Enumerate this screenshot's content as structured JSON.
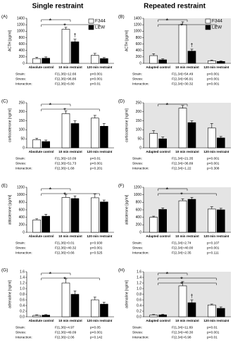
{
  "headings": [
    "Single restraint",
    "Repeated restraint"
  ],
  "chart_data": [
    {
      "type": "bar",
      "panel": "(A)",
      "ylabel": "ACTH [pg/ml]",
      "categories": [
        "Absolute control",
        "10 min restraint",
        "120 min restraint"
      ],
      "series": [
        {
          "name": "F344",
          "color": "#ffffff",
          "values": [
            150,
            1060,
            250
          ],
          "errors": [
            40,
            60,
            60
          ]
        },
        {
          "name": "LEW",
          "color": "#000000",
          "values": [
            160,
            670,
            150
          ],
          "errors": [
            40,
            80,
            30
          ]
        }
      ],
      "ylim": [
        0,
        1400
      ],
      "yticks": [
        0,
        200,
        400,
        600,
        800,
        1000,
        1200,
        1400
      ],
      "legend": true,
      "annotations": [
        "*",
        "*",
        "†"
      ],
      "stats": [
        [
          "Strain:",
          "F(1,36)=12.66",
          "p<0.001"
        ],
        [
          "Stress:",
          "F(2,36)=96.86",
          "p<0.001"
        ],
        [
          "Interaction:",
          "F(2,36)=6.80",
          "p<0.01"
        ]
      ]
    },
    {
      "type": "bar",
      "panel": "(B)",
      "ylabel": "ACTH [pg/ml]",
      "categories": [
        "Adapted control",
        "10 min restraint",
        "120 min restraint"
      ],
      "series": [
        {
          "name": "F344",
          "color": "#ffffff",
          "values": [
            240,
            1200,
            80
          ],
          "errors": [
            60,
            90,
            20
          ]
        },
        {
          "name": "LEW",
          "color": "#000000",
          "values": [
            110,
            380,
            60
          ],
          "errors": [
            30,
            60,
            15
          ]
        }
      ],
      "ylim": [
        0,
        1400
      ],
      "yticks": [
        0,
        200,
        400,
        600,
        800,
        1000,
        1200,
        1400
      ],
      "legend": true,
      "background": "#e4e4e4",
      "annotations": [
        "*",
        "*",
        "†"
      ],
      "stats": [
        [
          "Strain:",
          "F(1,34)=54.49",
          "p<0.001"
        ],
        [
          "Stress:",
          "F(2,34)=96.91",
          "p<0.001"
        ],
        [
          "Interaction:",
          "F(2,34)=30.32",
          "p<0.001"
        ]
      ]
    },
    {
      "type": "bar",
      "panel": "(C)",
      "ylabel": "corticosterone [ng/ml]",
      "categories": [
        "Absolute control",
        "10 min restraint",
        "120 min restraint"
      ],
      "series": [
        {
          "name": "F344",
          "color": "#ffffff",
          "values": [
            45,
            190,
            165
          ],
          "errors": [
            8,
            15,
            15
          ]
        },
        {
          "name": "LEW",
          "color": "#000000",
          "values": [
            35,
            135,
            120
          ],
          "errors": [
            8,
            15,
            15
          ]
        }
      ],
      "ylim": [
        0,
        250
      ],
      "yticks": [
        0,
        50,
        100,
        150,
        200,
        250
      ],
      "annotations": [
        "*",
        "*"
      ],
      "stats": [
        [
          "Strain:",
          "F(1,36)=10.09",
          "p<0.01"
        ],
        [
          "Stress:",
          "F(2,36)=51.73",
          "p<0.001"
        ],
        [
          "Interaction:",
          "F(2,36)=1.68",
          "p=0.201"
        ]
      ]
    },
    {
      "type": "bar",
      "panel": "(D)",
      "ylabel": "corticosterone [ng/ml]",
      "categories": [
        "Adapted control",
        "10 min restraint",
        "120 min restraint"
      ],
      "series": [
        {
          "name": "F344",
          "color": "#ffffff",
          "values": [
            80,
            220,
            110
          ],
          "errors": [
            15,
            15,
            25
          ]
        },
        {
          "name": "LEW",
          "color": "#000000",
          "values": [
            50,
            140,
            55
          ],
          "errors": [
            10,
            10,
            8
          ]
        }
      ],
      "ylim": [
        0,
        250
      ],
      "yticks": [
        0,
        50,
        100,
        150,
        200,
        250
      ],
      "background": "#e4e4e4",
      "annotations": [
        "*"
      ],
      "stats": [
        [
          "Strain:",
          "F(1,34)=21.35",
          "p<0.001"
        ],
        [
          "Stress:",
          "F(2,34)=36.89",
          "p<0.001"
        ],
        [
          "Interaction:",
          "F(2,34)=1.22",
          "p=0.308"
        ]
      ]
    },
    {
      "type": "bar",
      "panel": "(E)",
      "ylabel": "aldosterone [pg/ml]",
      "categories": [
        "Absolute control",
        "10 min restraint",
        "120 min restraint"
      ],
      "series": [
        {
          "name": "F344",
          "color": "#ffffff",
          "values": [
            330,
            930,
            920
          ],
          "errors": [
            30,
            80,
            100
          ]
        },
        {
          "name": "LEW",
          "color": "#000000",
          "values": [
            430,
            900,
            810
          ],
          "errors": [
            50,
            70,
            50
          ]
        }
      ],
      "ylim": [
        0,
        1200
      ],
      "yticks": [
        0,
        200,
        400,
        600,
        800,
        1000,
        1200
      ],
      "annotations": [
        "*",
        "*"
      ],
      "stats": [
        [
          "Strain:",
          "F(1,36)=0.01",
          "p=0.930"
        ],
        [
          "Stress:",
          "F(2,36)=40.32",
          "p<0.001"
        ],
        [
          "Interaction:",
          "F(2,36)=0.66",
          "p=0.525"
        ]
      ]
    },
    {
      "type": "bar",
      "panel": "(F)",
      "ylabel": "aldosterone [pg/ml]",
      "categories": [
        "Adapted control",
        "10 min restraint",
        "120 min restraint"
      ],
      "series": [
        {
          "name": "F344",
          "color": "#ffffff",
          "values": [
            400,
            840,
            620
          ],
          "errors": [
            30,
            50,
            60
          ]
        },
        {
          "name": "LEW",
          "color": "#000000",
          "values": [
            610,
            880,
            600
          ],
          "errors": [
            40,
            50,
            40
          ]
        }
      ],
      "ylim": [
        0,
        1200
      ],
      "yticks": [
        0,
        200,
        400,
        600,
        800,
        1000,
        1200
      ],
      "background": "#e4e4e4",
      "annotations": [
        "*",
        "*"
      ],
      "stats": [
        [
          "Strain:",
          "F(1,34)=2.74",
          "p=0.107"
        ],
        [
          "Stress:",
          "F(2,34)=40.00",
          "p<0.001"
        ],
        [
          "Interaction:",
          "F(2,34)=2.35",
          "p=0.111"
        ]
      ]
    },
    {
      "type": "bar",
      "panel": "(G)",
      "ylabel": "adrenaline [ng/ml]",
      "categories": [
        "Absolute control",
        "10 min restraint",
        "120 min restraint"
      ],
      "series": [
        {
          "name": "F344",
          "color": "#ffffff",
          "values": [
            0.05,
            1.2,
            0.6
          ],
          "errors": [
            0.02,
            0.15,
            0.1
          ]
        },
        {
          "name": "LEW",
          "color": "#000000",
          "values": [
            0.06,
            0.8,
            0.45
          ],
          "errors": [
            0.02,
            0.12,
            0.07
          ]
        }
      ],
      "ylim": [
        0,
        1.6
      ],
      "yticks": [
        {
          "value": 0,
          "label": "0.0"
        },
        0.2,
        0.4,
        0.6,
        0.8,
        {
          "value": 1,
          "label": "1.0"
        },
        1.2,
        1.4,
        1.6
      ],
      "annotations": [
        "*",
        "*"
      ],
      "stats": [
        [
          "Strain:",
          "F(1,36)=4.97",
          "p<0.05"
        ],
        [
          "Stress:",
          "F(2,36)=49.09",
          "p<0.001"
        ],
        [
          "Interaction:",
          "F(2,36)=2.06",
          "p=0.142"
        ]
      ]
    },
    {
      "type": "bar",
      "panel": "(H)",
      "ylabel": "adrenaline [ng/ml]",
      "categories": [
        "Adapted control",
        "10 min restraint",
        "120 min restraint"
      ],
      "series": [
        {
          "name": "F344",
          "color": "#ffffff",
          "values": [
            0.06,
            1.1,
            0.42
          ],
          "errors": [
            0.02,
            0.15,
            0.03
          ]
        },
        {
          "name": "LEW",
          "color": "#000000",
          "values": [
            0.07,
            0.5,
            0.3
          ],
          "errors": [
            0.02,
            0.1,
            0.05
          ]
        }
      ],
      "ylim": [
        0,
        1.6
      ],
      "yticks": [
        {
          "value": 0,
          "label": "0.0"
        },
        0.2,
        0.4,
        0.6,
        0.8,
        {
          "value": 1,
          "label": "1.0"
        },
        1.2,
        1.4,
        1.6
      ],
      "background": "#e4e4e4",
      "annotations": [
        "*",
        "*",
        "*",
        "†"
      ],
      "stats": [
        [
          "Strain:",
          "F(1,34)=11.69",
          "p<0.01"
        ],
        [
          "Stress:",
          "F(2,34)=40.30",
          "p<0.001"
        ],
        [
          "Interaction:",
          "F(2,34)=6.98",
          "p<0.01"
        ]
      ]
    }
  ]
}
